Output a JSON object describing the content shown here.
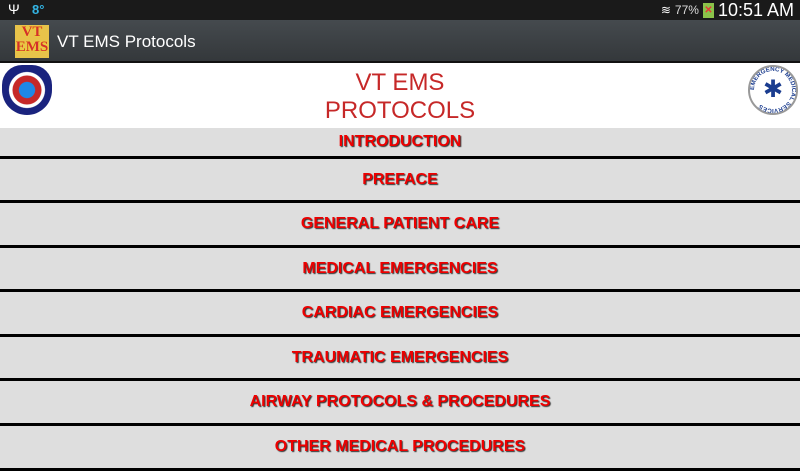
{
  "status_bar": {
    "usb_icon": "usb-icon",
    "temperature": "8°",
    "wifi_icon": "wifi-icon",
    "battery": "77%",
    "battery_icon": "battery-icon",
    "time": "10:51 AM"
  },
  "action_bar": {
    "app_icon_text": "VT EMS",
    "title": "VT EMS Protocols"
  },
  "header": {
    "title_line1": "VT EMS",
    "title_line2": "PROTOCOLS",
    "left_logo": "eagle-star-of-life-logo",
    "right_logo": "emergency-medical-services-logo",
    "right_logo_text": "EMERGENCY MEDICAL SERVICES"
  },
  "menu": [
    {
      "label": "INTRODUCTION"
    },
    {
      "label": "PREFACE"
    },
    {
      "label": "GENERAL PATIENT CARE"
    },
    {
      "label": "MEDICAL EMERGENCIES"
    },
    {
      "label": "CARDIAC EMERGENCIES"
    },
    {
      "label": "TRAUMATIC EMERGENCIES"
    },
    {
      "label": "AIRWAY PROTOCOLS & PROCEDURES"
    },
    {
      "label": "OTHER MEDICAL PROCEDURES"
    }
  ],
  "colors": {
    "button_text": "#ee0000",
    "button_bg": "#dedede",
    "title": "#c62828"
  }
}
